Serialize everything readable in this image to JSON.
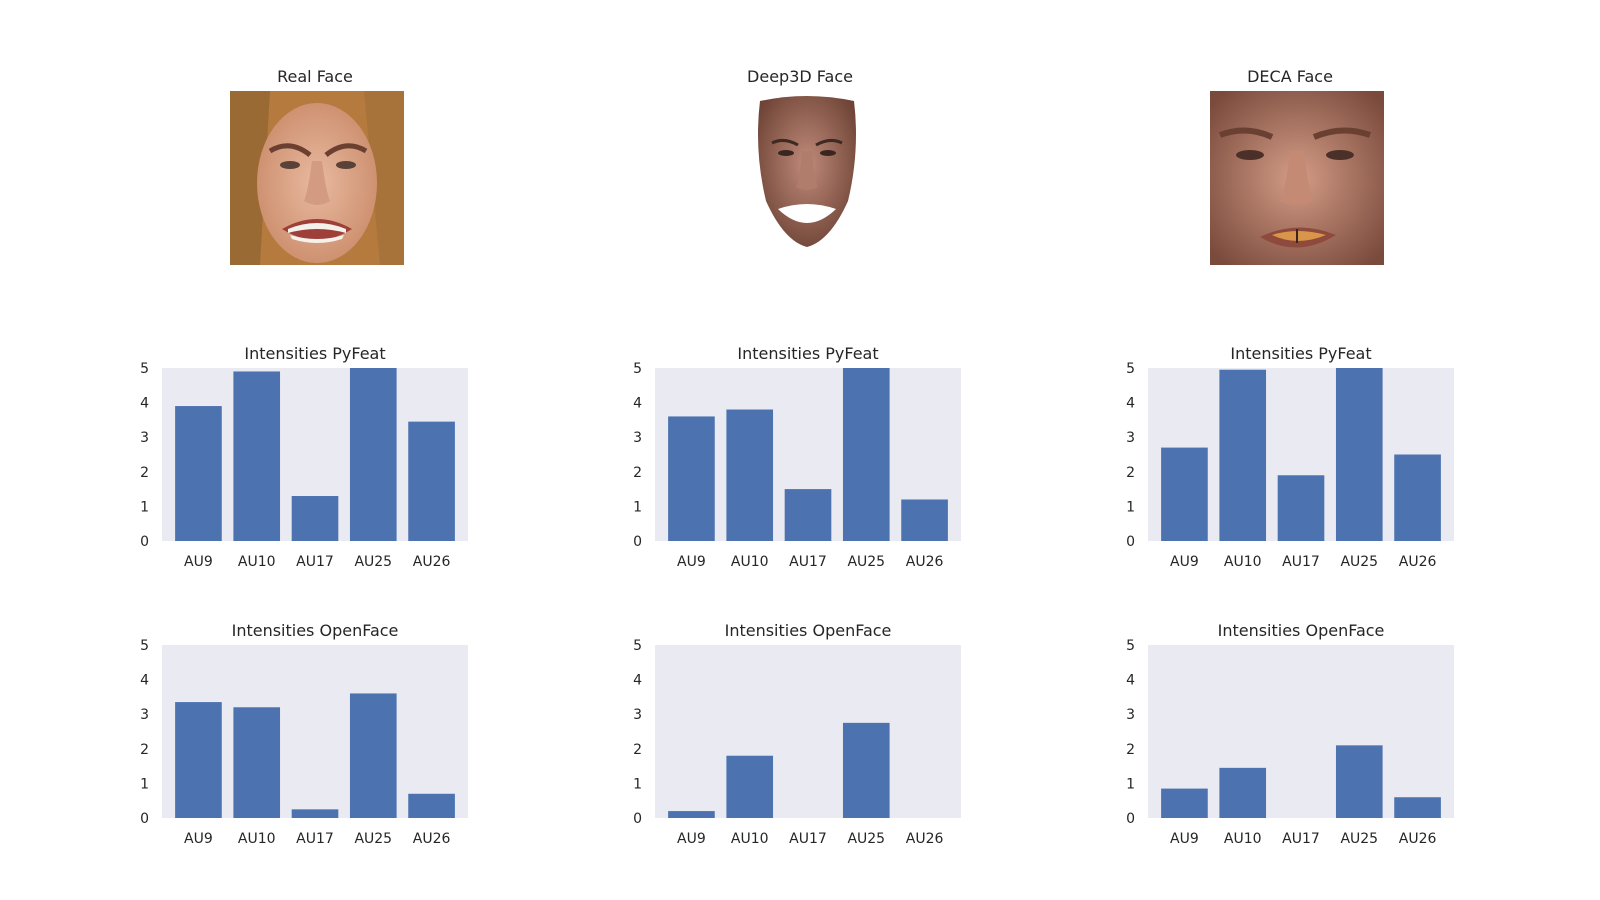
{
  "faces": [
    {
      "title": "Real Face",
      "icon": "real-face-photo"
    },
    {
      "title": "Deep3D Face",
      "icon": "deep3d-face-render"
    },
    {
      "title": "DECA Face",
      "icon": "deca-face-render"
    }
  ],
  "colors": {
    "bar": "#4c72b0",
    "axes_bg": "#eaeaf2",
    "text": "#262626"
  },
  "chart_data": [
    {
      "type": "bar",
      "title": "Intensities PyFeat",
      "source": "Real Face",
      "categories": [
        "AU9",
        "AU10",
        "AU17",
        "AU25",
        "AU26"
      ],
      "values": [
        3.9,
        4.9,
        1.3,
        5.0,
        3.45
      ],
      "ylim": [
        0,
        5
      ],
      "yticks": [
        0,
        1,
        2,
        3,
        4,
        5
      ],
      "grid": false
    },
    {
      "type": "bar",
      "title": "Intensities PyFeat",
      "source": "Deep3D Face",
      "categories": [
        "AU9",
        "AU10",
        "AU17",
        "AU25",
        "AU26"
      ],
      "values": [
        3.6,
        3.8,
        1.5,
        5.0,
        1.2
      ],
      "ylim": [
        0,
        5
      ],
      "yticks": [
        0,
        1,
        2,
        3,
        4,
        5
      ],
      "grid": false
    },
    {
      "type": "bar",
      "title": "Intensities PyFeat",
      "source": "DECA Face",
      "categories": [
        "AU9",
        "AU10",
        "AU17",
        "AU25",
        "AU26"
      ],
      "values": [
        2.7,
        4.95,
        1.9,
        5.0,
        2.5
      ],
      "ylim": [
        0,
        5
      ],
      "yticks": [
        0,
        1,
        2,
        3,
        4,
        5
      ],
      "grid": false
    },
    {
      "type": "bar",
      "title": "Intensities OpenFace",
      "source": "Real Face",
      "categories": [
        "AU9",
        "AU10",
        "AU17",
        "AU25",
        "AU26"
      ],
      "values": [
        3.35,
        3.2,
        0.25,
        3.6,
        0.7
      ],
      "ylim": [
        0,
        5
      ],
      "yticks": [
        0,
        1,
        2,
        3,
        4,
        5
      ],
      "grid": false
    },
    {
      "type": "bar",
      "title": "Intensities OpenFace",
      "source": "Deep3D Face",
      "categories": [
        "AU9",
        "AU10",
        "AU17",
        "AU25",
        "AU26"
      ],
      "values": [
        0.2,
        1.8,
        0.0,
        2.75,
        0.0
      ],
      "ylim": [
        0,
        5
      ],
      "yticks": [
        0,
        1,
        2,
        3,
        4,
        5
      ],
      "grid": false
    },
    {
      "type": "bar",
      "title": "Intensities OpenFace",
      "source": "DECA Face",
      "categories": [
        "AU9",
        "AU10",
        "AU17",
        "AU25",
        "AU26"
      ],
      "values": [
        0.85,
        1.45,
        0.0,
        2.1,
        0.6
      ],
      "ylim": [
        0,
        5
      ],
      "yticks": [
        0,
        1,
        2,
        3,
        4,
        5
      ],
      "grid": false
    }
  ]
}
